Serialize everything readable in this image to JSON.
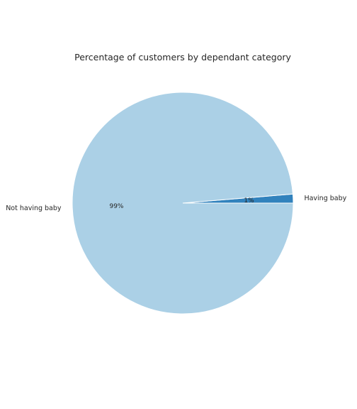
{
  "chart_data": {
    "type": "pie",
    "title": "Percentage of customers by dependant category",
    "categories": [
      "Having baby",
      "Not having baby"
    ],
    "values": [
      1.3,
      98.7
    ],
    "percent_labels": [
      "1%",
      "99%"
    ],
    "colors": [
      "#3182bd",
      "#abd0e6"
    ],
    "legend": "none",
    "grid": false
  }
}
